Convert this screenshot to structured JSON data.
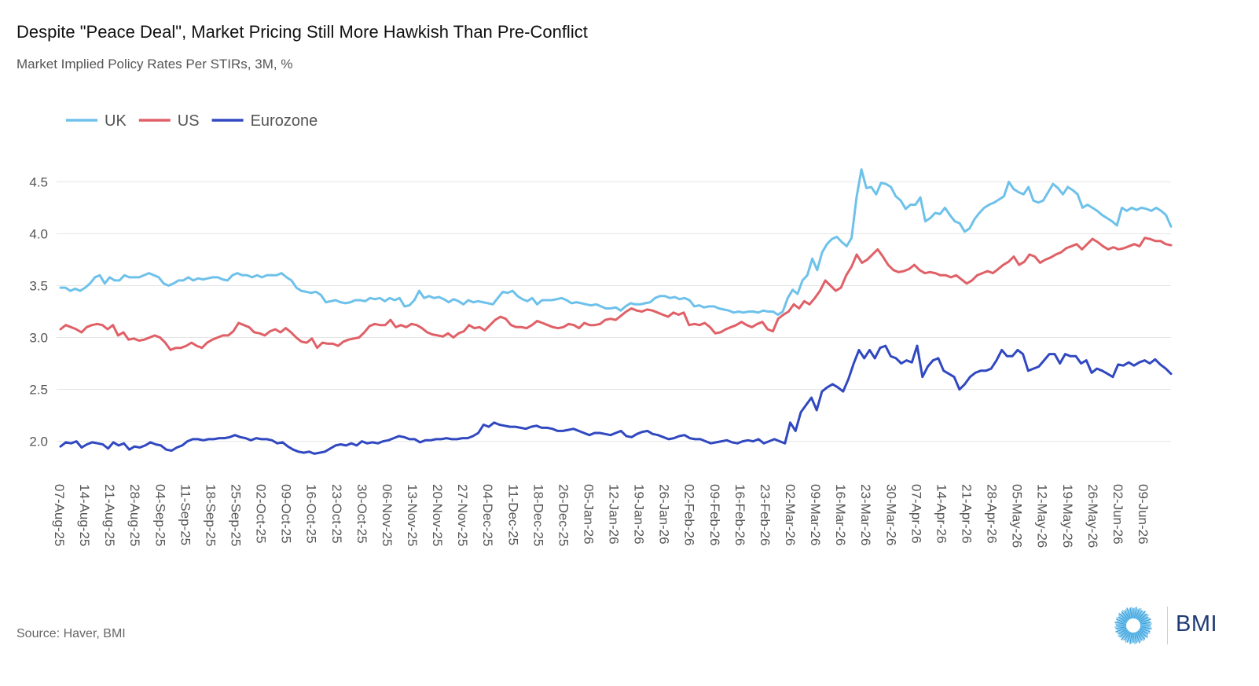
{
  "header": {
    "title": "Despite \"Peace Deal\", Market Pricing Still More Hawkish Than Pre-Conflict",
    "subtitle": "Market Implied Policy Rates Per STIRs, 3M, %"
  },
  "footer": {
    "source": "Source: Haver, BMI",
    "logo_text": "BMI"
  },
  "chart_data": {
    "type": "line",
    "ylim": [
      1.8,
      4.7
    ],
    "yticks": [
      2.0,
      2.5,
      3.0,
      3.5,
      4.0,
      4.5
    ],
    "ytick_labels": [
      "2.0",
      "2.5",
      "3.0",
      "3.5",
      "4.0",
      "4.5"
    ],
    "grid": true,
    "legend_position": "top-left",
    "x_ticks": [
      "07-Aug-25",
      "14-Aug-25",
      "21-Aug-25",
      "28-Aug-25",
      "04-Sep-25",
      "11-Sep-25",
      "18-Sep-25",
      "25-Sep-25",
      "02-Oct-25",
      "09-Oct-25",
      "16-Oct-25",
      "23-Oct-25",
      "30-Oct-25",
      "06-Nov-25",
      "13-Nov-25",
      "20-Nov-25",
      "27-Nov-25",
      "04-Dec-25",
      "11-Dec-25",
      "18-Dec-25",
      "26-Dec-25",
      "05-Jan-26",
      "12-Jan-26",
      "19-Jan-26",
      "26-Jan-26",
      "02-Feb-26",
      "09-Feb-26",
      "16-Feb-26",
      "23-Feb-26",
      "02-Mar-26",
      "09-Mar-26",
      "16-Mar-26",
      "23-Mar-26",
      "30-Mar-26",
      "07-Apr-26",
      "14-Apr-26",
      "21-Apr-26",
      "28-Apr-26",
      "05-May-26",
      "12-May-26",
      "19-May-26",
      "26-May-26",
      "02-Jun-26",
      "09-Jun-26"
    ],
    "series": [
      {
        "name": "UK",
        "color": "#6ec1ea",
        "values": [
          3.48,
          3.48,
          3.45,
          3.47,
          3.45,
          3.48,
          3.52,
          3.58,
          3.6,
          3.52,
          3.58,
          3.55,
          3.55,
          3.6,
          3.58,
          3.58,
          3.58,
          3.6,
          3.62,
          3.6,
          3.58,
          3.52,
          3.5,
          3.52,
          3.55,
          3.55,
          3.58,
          3.55,
          3.57,
          3.56,
          3.57,
          3.58,
          3.58,
          3.56,
          3.55,
          3.6,
          3.62,
          3.6,
          3.6,
          3.58,
          3.6,
          3.58,
          3.6,
          3.6,
          3.6,
          3.62,
          3.58,
          3.55,
          3.48,
          3.45,
          3.44,
          3.43,
          3.44,
          3.41,
          3.34,
          3.35,
          3.36,
          3.34,
          3.33,
          3.34,
          3.36,
          3.36,
          3.35,
          3.38,
          3.37,
          3.38,
          3.35,
          3.38,
          3.36,
          3.38,
          3.3,
          3.31,
          3.36,
          3.45,
          3.38,
          3.4,
          3.38,
          3.39,
          3.37,
          3.34,
          3.37,
          3.35,
          3.32,
          3.36,
          3.34,
          3.35,
          3.34,
          3.33,
          3.32,
          3.38,
          3.44,
          3.43,
          3.45,
          3.4,
          3.37,
          3.35,
          3.38,
          3.32,
          3.36,
          3.36,
          3.36,
          3.37,
          3.38,
          3.36,
          3.33,
          3.34,
          3.33,
          3.32,
          3.31,
          3.32,
          3.3,
          3.28,
          3.28,
          3.29,
          3.26,
          3.3,
          3.33,
          3.32,
          3.32,
          3.33,
          3.34,
          3.38,
          3.4,
          3.4,
          3.38,
          3.39,
          3.37,
          3.38,
          3.36,
          3.3,
          3.31,
          3.29,
          3.3,
          3.3,
          3.28,
          3.27,
          3.26,
          3.24,
          3.25,
          3.24,
          3.25,
          3.25,
          3.24,
          3.26,
          3.25,
          3.25,
          3.22,
          3.25,
          3.38,
          3.46,
          3.42,
          3.55,
          3.6,
          3.76,
          3.65,
          3.82,
          3.9,
          3.95,
          3.97,
          3.92,
          3.88,
          3.96,
          4.35,
          4.62,
          4.44,
          4.45,
          4.38,
          4.49,
          4.48,
          4.45,
          4.36,
          4.32,
          4.24,
          4.28,
          4.28,
          4.35,
          4.12,
          4.15,
          4.2,
          4.19,
          4.25,
          4.18,
          4.12,
          4.1,
          4.02,
          4.05,
          4.14,
          4.2,
          4.25,
          4.28,
          4.3,
          4.33,
          4.36,
          4.5,
          4.43,
          4.4,
          4.38,
          4.45,
          4.32,
          4.3,
          4.32,
          4.4,
          4.48,
          4.44,
          4.38,
          4.45,
          4.42,
          4.38,
          4.25,
          4.28,
          4.25,
          4.22,
          4.18,
          4.15,
          4.12,
          4.08,
          4.25,
          4.22,
          4.25,
          4.23,
          4.25,
          4.24,
          4.22,
          4.25,
          4.22,
          4.18,
          4.07
        ]
      },
      {
        "name": "US",
        "color": "#e06067",
        "values": [
          3.08,
          3.12,
          3.1,
          3.08,
          3.05,
          3.1,
          3.12,
          3.13,
          3.12,
          3.08,
          3.12,
          3.02,
          3.05,
          2.98,
          2.99,
          2.97,
          2.98,
          3.0,
          3.02,
          3.0,
          2.95,
          2.88,
          2.9,
          2.9,
          2.92,
          2.95,
          2.92,
          2.9,
          2.95,
          2.98,
          3.0,
          3.02,
          3.02,
          3.06,
          3.14,
          3.12,
          3.1,
          3.05,
          3.04,
          3.02,
          3.06,
          3.08,
          3.05,
          3.09,
          3.05,
          3.0,
          2.96,
          2.95,
          2.99,
          2.9,
          2.95,
          2.94,
          2.94,
          2.92,
          2.96,
          2.98,
          2.99,
          3.0,
          3.05,
          3.11,
          3.13,
          3.12,
          3.12,
          3.17,
          3.1,
          3.12,
          3.1,
          3.13,
          3.12,
          3.09,
          3.05,
          3.03,
          3.02,
          3.01,
          3.04,
          3.0,
          3.04,
          3.06,
          3.12,
          3.09,
          3.1,
          3.07,
          3.12,
          3.17,
          3.2,
          3.18,
          3.12,
          3.1,
          3.1,
          3.09,
          3.12,
          3.16,
          3.14,
          3.12,
          3.1,
          3.09,
          3.1,
          3.13,
          3.12,
          3.09,
          3.14,
          3.12,
          3.12,
          3.13,
          3.17,
          3.18,
          3.17,
          3.21,
          3.25,
          3.28,
          3.26,
          3.25,
          3.27,
          3.26,
          3.24,
          3.22,
          3.2,
          3.24,
          3.22,
          3.24,
          3.12,
          3.13,
          3.12,
          3.14,
          3.1,
          3.04,
          3.05,
          3.08,
          3.1,
          3.12,
          3.15,
          3.12,
          3.1,
          3.13,
          3.15,
          3.08,
          3.06,
          3.18,
          3.22,
          3.25,
          3.32,
          3.28,
          3.35,
          3.32,
          3.38,
          3.45,
          3.55,
          3.5,
          3.45,
          3.48,
          3.6,
          3.68,
          3.8,
          3.72,
          3.75,
          3.8,
          3.85,
          3.78,
          3.7,
          3.65,
          3.63,
          3.64,
          3.66,
          3.7,
          3.65,
          3.62,
          3.63,
          3.62,
          3.6,
          3.6,
          3.58,
          3.6,
          3.56,
          3.52,
          3.55,
          3.6,
          3.62,
          3.64,
          3.62,
          3.66,
          3.7,
          3.73,
          3.78,
          3.7,
          3.73,
          3.8,
          3.78,
          3.72,
          3.75,
          3.77,
          3.8,
          3.82,
          3.86,
          3.88,
          3.9,
          3.85,
          3.9,
          3.95,
          3.92,
          3.88,
          3.85,
          3.87,
          3.85,
          3.86,
          3.88,
          3.9,
          3.88,
          3.96,
          3.95,
          3.93,
          3.93,
          3.9,
          3.89
        ]
      },
      {
        "name": "Eurozone",
        "color": "#3048c0",
        "values": [
          1.95,
          1.99,
          1.98,
          2.0,
          1.94,
          1.97,
          1.99,
          1.98,
          1.97,
          1.93,
          1.99,
          1.96,
          1.98,
          1.92,
          1.95,
          1.94,
          1.96,
          1.99,
          1.97,
          1.96,
          1.92,
          1.91,
          1.94,
          1.96,
          2.0,
          2.02,
          2.02,
          2.01,
          2.02,
          2.02,
          2.03,
          2.03,
          2.04,
          2.06,
          2.04,
          2.03,
          2.01,
          2.03,
          2.02,
          2.02,
          2.01,
          1.98,
          1.99,
          1.95,
          1.92,
          1.9,
          1.89,
          1.9,
          1.88,
          1.89,
          1.9,
          1.93,
          1.96,
          1.97,
          1.96,
          1.98,
          1.96,
          2.0,
          1.98,
          1.99,
          1.98,
          2.0,
          2.01,
          2.03,
          2.05,
          2.04,
          2.02,
          2.02,
          1.99,
          2.01,
          2.01,
          2.02,
          2.02,
          2.03,
          2.02,
          2.02,
          2.03,
          2.03,
          2.05,
          2.08,
          2.16,
          2.14,
          2.18,
          2.16,
          2.15,
          2.14,
          2.14,
          2.13,
          2.12,
          2.14,
          2.15,
          2.13,
          2.13,
          2.12,
          2.1,
          2.1,
          2.11,
          2.12,
          2.1,
          2.08,
          2.06,
          2.08,
          2.08,
          2.07,
          2.06,
          2.08,
          2.1,
          2.05,
          2.04,
          2.07,
          2.09,
          2.1,
          2.07,
          2.06,
          2.04,
          2.02,
          2.03,
          2.05,
          2.06,
          2.03,
          2.02,
          2.02,
          2.0,
          1.98,
          1.99,
          2.0,
          2.01,
          1.99,
          1.98,
          2.0,
          2.01,
          2.0,
          2.02,
          1.98,
          2.0,
          2.02,
          2.0,
          1.98,
          2.18,
          2.1,
          2.28,
          2.35,
          2.42,
          2.3,
          2.48,
          2.52,
          2.55,
          2.52,
          2.48,
          2.6,
          2.75,
          2.88,
          2.8,
          2.88,
          2.8,
          2.9,
          2.92,
          2.82,
          2.8,
          2.75,
          2.78,
          2.76,
          2.92,
          2.62,
          2.72,
          2.78,
          2.8,
          2.68,
          2.65,
          2.62,
          2.5,
          2.55,
          2.62,
          2.66,
          2.68,
          2.68,
          2.7,
          2.78,
          2.88,
          2.82,
          2.82,
          2.88,
          2.84,
          2.68,
          2.7,
          2.72,
          2.78,
          2.84,
          2.84,
          2.75,
          2.84,
          2.82,
          2.82,
          2.75,
          2.78,
          2.66,
          2.7,
          2.68,
          2.65,
          2.62,
          2.74,
          2.73,
          2.76,
          2.73,
          2.76,
          2.78,
          2.75,
          2.79,
          2.74,
          2.7,
          2.65
        ]
      }
    ]
  }
}
